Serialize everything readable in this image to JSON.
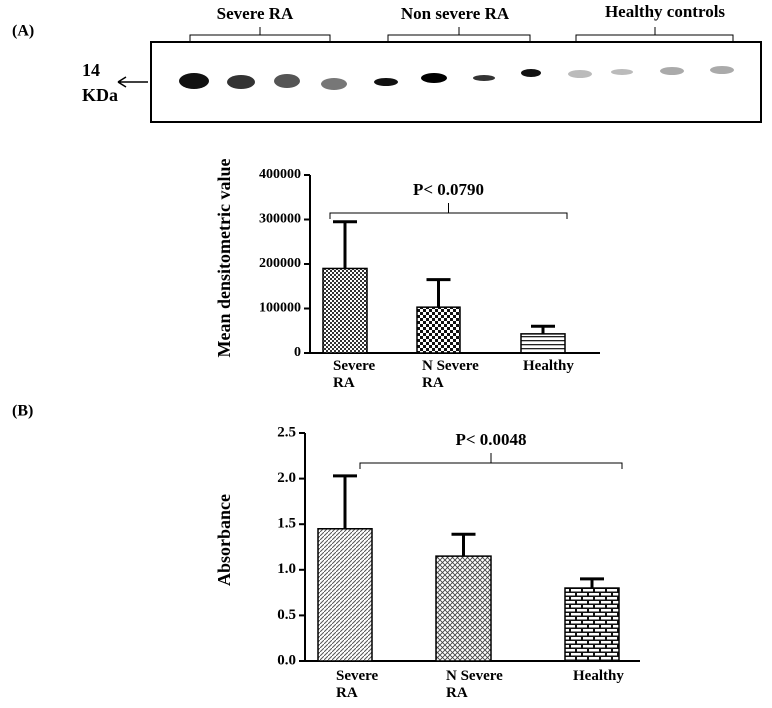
{
  "blot": {
    "panel_label": "(A)",
    "groups": [
      "Severe RA",
      "Non severe RA",
      "Healthy controls"
    ],
    "marker_value": "14",
    "marker_unit": "KDa"
  },
  "panel_b_label": "(B)",
  "chart_data": [
    {
      "type": "bar",
      "y_label": "Mean densitometric value",
      "categories": [
        "Severe RA",
        "N Severe RA",
        "Healthy"
      ],
      "values": [
        190000,
        103000,
        43000
      ],
      "errors": [
        105000,
        62000,
        17000
      ],
      "patterns": [
        "checker-fine",
        "checker",
        "hlines"
      ],
      "color": "#000000",
      "ylim": [
        0,
        400000
      ],
      "yticks": [
        0,
        100000,
        200000,
        300000,
        400000
      ],
      "annotation": "P< 0.0790"
    },
    {
      "type": "bar",
      "y_label": "Absorbance",
      "categories": [
        "Severe RA",
        "N Severe RA",
        "Healthy"
      ],
      "values": [
        1.45,
        1.15,
        0.8
      ],
      "errors": [
        0.58,
        0.24,
        0.1
      ],
      "patterns": [
        "diagonal",
        "crosshatch",
        "brick"
      ],
      "color": "#000000",
      "ylim": [
        0,
        2.5
      ],
      "yticks": [
        {
          "value": 0,
          "label": "0.0"
        },
        0.5,
        {
          "value": 1,
          "label": "1.0"
        },
        1.5,
        {
          "value": 2,
          "label": "2.0"
        },
        2.5
      ],
      "annotation": "P< 0.0048"
    }
  ]
}
